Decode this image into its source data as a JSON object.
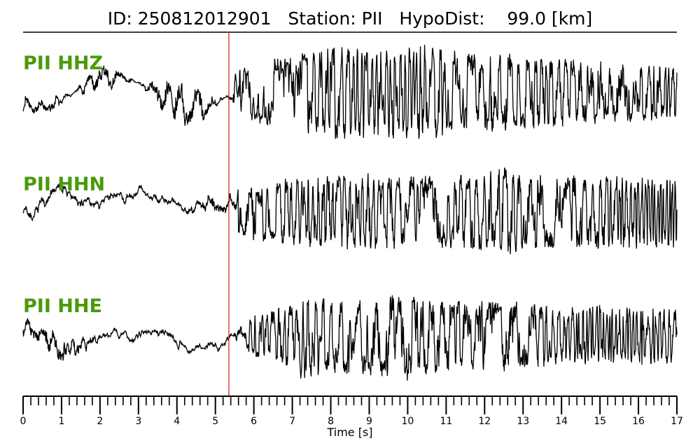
{
  "chart_data": {
    "type": "line",
    "title": "ID: 250812012901   Station: PII   HypoDist:    99.0 [km]",
    "xlabel": "Time [s]",
    "xlim": [
      0,
      17
    ],
    "x_ticks": [
      "0",
      "1",
      "2",
      "3",
      "4",
      "5",
      "6",
      "7",
      "8",
      "9",
      "10",
      "11",
      "12",
      "13",
      "14",
      "15",
      "16",
      "17"
    ],
    "minor_tick_step": 0.2,
    "pick_time": 5.35,
    "pick_color": "#d62728",
    "trace_color": "#000000",
    "label_color": "#4a9a0b",
    "grid": false,
    "series": [
      {
        "name": "PII HHZ",
        "t": [
          0,
          0.4,
          0.8,
          1.2,
          1.6,
          2.0,
          2.4,
          2.8,
          3.2,
          3.6,
          4.0,
          4.2,
          4.4,
          4.8,
          5.0,
          5.35,
          5.5,
          5.8,
          6.2,
          6.6,
          7.0,
          7.4,
          7.8,
          8.2,
          8.6,
          9.0,
          9.4,
          9.8,
          10.2,
          10.6,
          11.0,
          11.4,
          11.8,
          12.2,
          12.6,
          13.0,
          13.4,
          13.8,
          14.2,
          14.6,
          15.0,
          15.4,
          15.8,
          16.2,
          16.6,
          17.0
        ],
        "amp": [
          0.4,
          0.2,
          0.25,
          0.1,
          -0.3,
          -0.5,
          -0.4,
          -0.1,
          0.2,
          0.5,
          0.8,
          0.9,
          0.75,
          0.4,
          0.15,
          0.05,
          0.45,
          0.5,
          0.6,
          0.65,
          0.7,
          0.8,
          0.85,
          0.9,
          0.9,
          0.85,
          0.85,
          0.9,
          0.95,
          0.9,
          0.85,
          0.8,
          0.8,
          0.75,
          0.75,
          0.7,
          0.7,
          0.7,
          0.65,
          0.65,
          0.6,
          0.6,
          0.6,
          0.55,
          0.55,
          0.5
        ],
        "mode": [
          0,
          0,
          0,
          0,
          0,
          0,
          0,
          0,
          0,
          0,
          0,
          0,
          0,
          0,
          0,
          0,
          1,
          1,
          1,
          1,
          1,
          1,
          1,
          1,
          1,
          1,
          1,
          1,
          1,
          1,
          1,
          1,
          1,
          1,
          1,
          1,
          1,
          1,
          1,
          1,
          1,
          1,
          1,
          1,
          1,
          1
        ]
      },
      {
        "name": "PII HHN",
        "t": [
          0,
          1,
          2,
          3,
          4,
          5,
          5.35,
          5.6,
          6.0,
          7.0,
          8.0,
          9.0,
          10.0,
          11.0,
          12.0,
          12.5,
          13.0,
          14.0,
          15.0,
          16.0,
          17.0
        ],
        "amp": [
          0.2,
          0.15,
          0.1,
          0.1,
          0.05,
          0.3,
          0.25,
          0.45,
          0.55,
          0.65,
          0.7,
          0.75,
          0.7,
          0.7,
          0.75,
          0.9,
          0.75,
          0.7,
          0.7,
          0.7,
          0.7
        ],
        "mode": [
          0,
          0,
          0,
          0,
          0,
          0,
          0,
          1,
          1,
          1,
          1,
          1,
          1,
          1,
          1,
          1,
          1,
          1,
          1,
          1,
          1
        ]
      },
      {
        "name": "PII HHE",
        "t": [
          0,
          0.5,
          1.0,
          1.5,
          2.0,
          3.0,
          4.0,
          5.0,
          5.35,
          5.8,
          6.5,
          7.0,
          7.3,
          8.0,
          9.0,
          10.0,
          11.0,
          12.0,
          13.0,
          14.0,
          15.0,
          16.0,
          17.0
        ],
        "amp": [
          0.3,
          0.35,
          0.55,
          0.3,
          0.1,
          0.05,
          0.05,
          0.05,
          0.05,
          0.35,
          0.55,
          0.6,
          0.9,
          0.7,
          0.75,
          0.85,
          0.65,
          0.7,
          0.65,
          0.55,
          0.6,
          0.55,
          0.55
        ],
        "mode": [
          0,
          0,
          0,
          0,
          0,
          0,
          0,
          0,
          0,
          1,
          1,
          1,
          1,
          1,
          1,
          1,
          1,
          1,
          1,
          1,
          1,
          1,
          1
        ]
      }
    ]
  }
}
